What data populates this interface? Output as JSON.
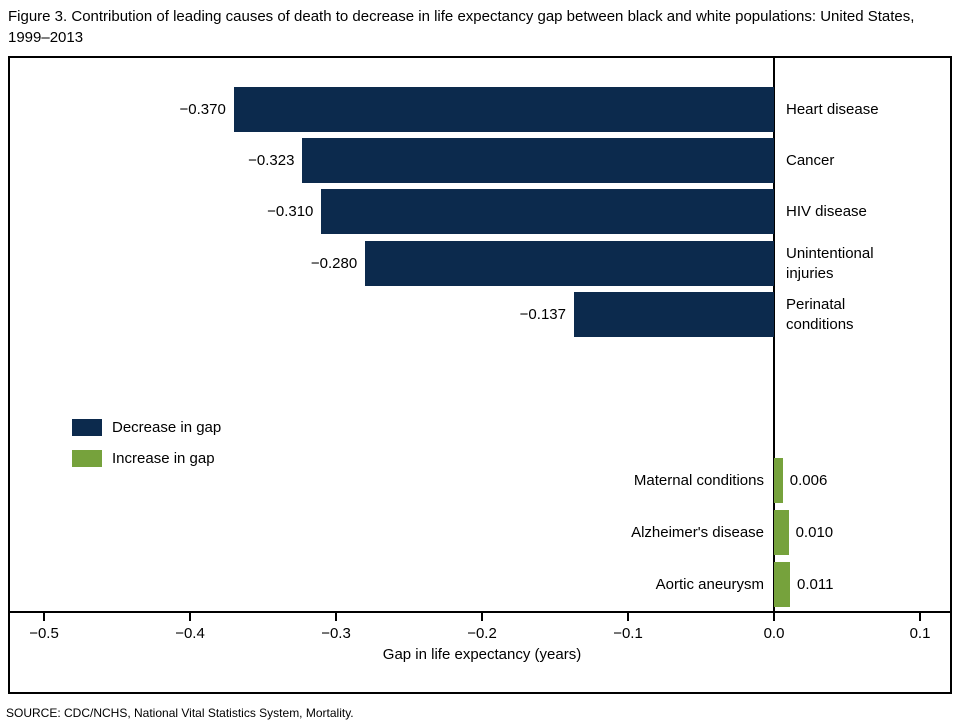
{
  "title": "Figure 3. Contribution of leading causes of death to decrease in life expectancy gap between black and white populations: United States, 1999–2013",
  "source": "SOURCE: CDC/NCHS, National Vital Statistics System, Mortality.",
  "chart_data": {
    "type": "bar",
    "orientation": "horizontal",
    "title": "Figure 3. Contribution of leading causes of death to decrease in life expectancy gap between black and white populations: United States, 1999–2013",
    "categories": [
      "Heart disease",
      "Cancer",
      "HIV disease",
      "Unintentional injuries",
      "Perinatal conditions",
      "Maternal conditions",
      "Alzheimer's disease",
      "Aortic aneurysm"
    ],
    "values": [
      -0.37,
      -0.323,
      -0.31,
      -0.28,
      -0.137,
      0.006,
      0.01,
      0.011
    ],
    "value_labels": [
      "−0.370",
      "−0.323",
      "−0.310",
      "−0.280",
      "−0.137",
      "0.006",
      "0.010",
      "0.011"
    ],
    "xlabel": "Gap in life expectancy (years)",
    "xlim": [
      -0.5,
      0.1
    ],
    "xticks": {
      "values": [
        -0.5,
        -0.4,
        -0.3,
        -0.2,
        -0.1,
        0.0,
        0.1
      ],
      "labels": [
        "−0.5",
        "−0.4",
        "−0.3",
        "−0.2",
        "−0.1",
        "0.0",
        "0.1"
      ]
    },
    "grid": false,
    "legend_position": "middle-left",
    "colors": {
      "decrease": "#0c2a4d",
      "increase": "#76a23c"
    },
    "legend": [
      {
        "label": "Decrease in gap",
        "key": "decrease",
        "color": "#0c2a4d"
      },
      {
        "label": "Increase in gap",
        "key": "increase",
        "color": "#76a23c"
      }
    ]
  }
}
